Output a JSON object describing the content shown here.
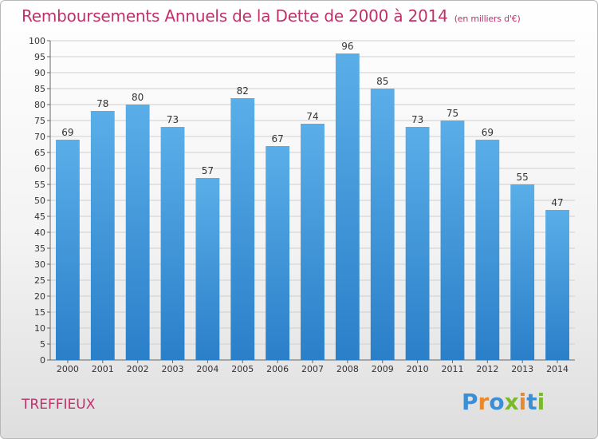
{
  "header": {
    "title": "Remboursements Annuels de la Dette de 2000 à 2014",
    "unit": "(en milliers d'€)"
  },
  "footer": {
    "town": "TREFFIEUX",
    "logo_letters": [
      "P",
      "r",
      "o",
      "x",
      "i",
      "t",
      "i"
    ],
    "logo_colors": [
      "#3a8fd6",
      "#e8892b",
      "#3a8fd6",
      "#7cb82f",
      "#e8892b",
      "#3a8fd6",
      "#7cb82f"
    ]
  },
  "colors": {
    "bar_light": "#5aaee8",
    "bar_dark": "#2a7fc9",
    "title": "#c0306b"
  },
  "chart_data": {
    "type": "bar",
    "title": "Remboursements Annuels de la Dette de 2000 à 2014",
    "xlabel": "",
    "ylabel": "",
    "categories": [
      "2000",
      "2001",
      "2002",
      "2003",
      "2004",
      "2005",
      "2006",
      "2007",
      "2008",
      "2009",
      "2010",
      "2011",
      "2012",
      "2013",
      "2014"
    ],
    "values": [
      69,
      78,
      80,
      73,
      57,
      82,
      67,
      74,
      96,
      85,
      73,
      75,
      69,
      55,
      47
    ],
    "ylim": [
      0,
      100
    ],
    "yticks": [
      0,
      5,
      10,
      15,
      20,
      25,
      30,
      35,
      40,
      45,
      50,
      55,
      60,
      65,
      70,
      75,
      80,
      85,
      90,
      95,
      100
    ],
    "grid": true,
    "legend": "none"
  }
}
